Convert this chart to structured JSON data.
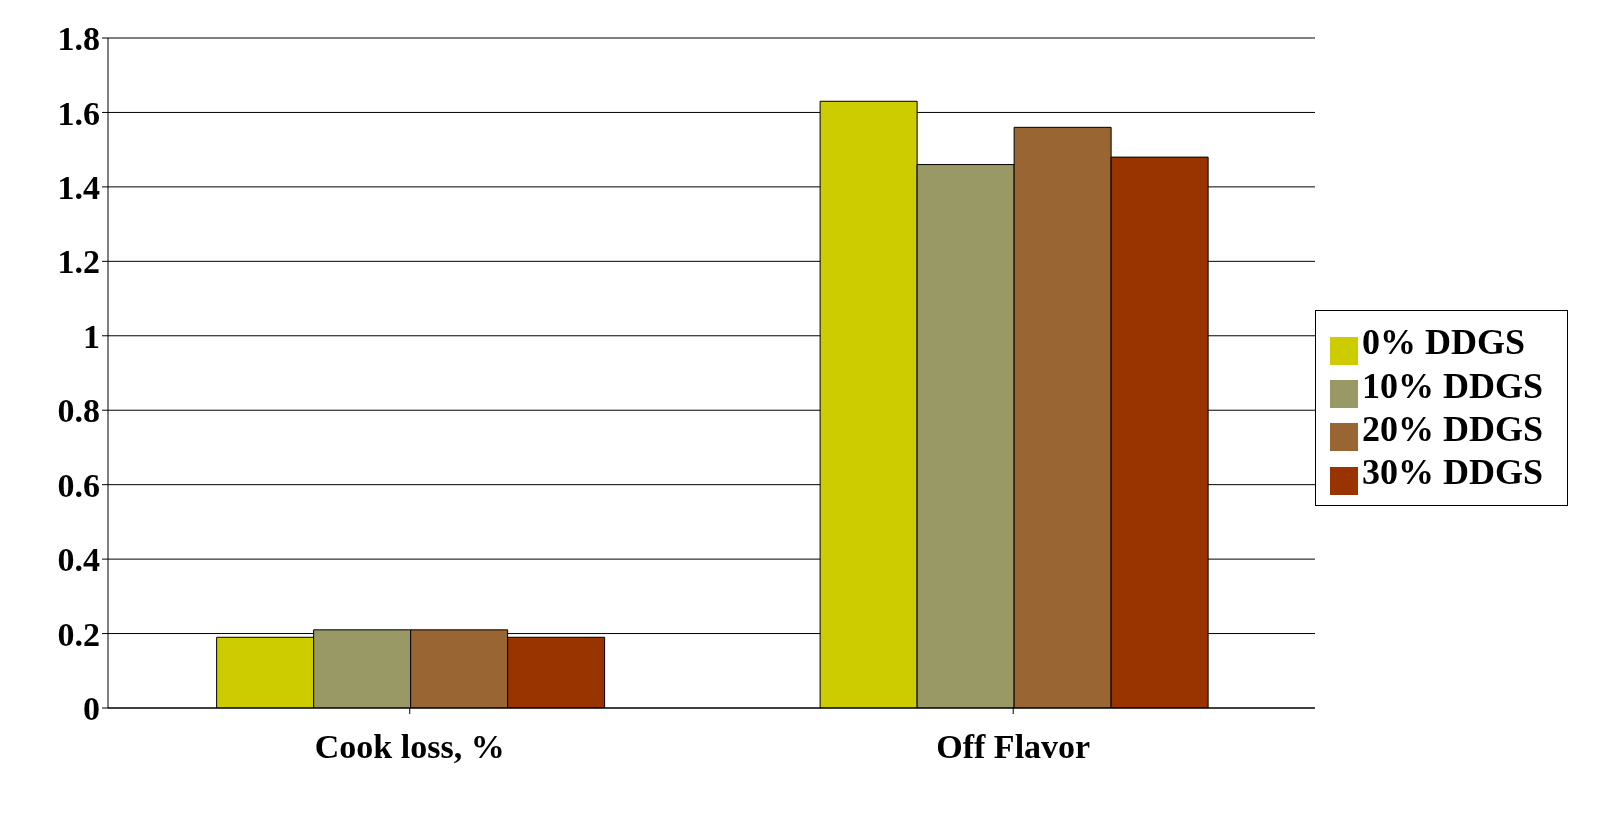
{
  "chart_data": {
    "type": "bar",
    "categories": [
      "Cook loss, %",
      "Off Flavor"
    ],
    "series": [
      {
        "name": "0% DDGS",
        "color": "#cccc00",
        "values": [
          0.19,
          1.63
        ]
      },
      {
        "name": "10% DDGS",
        "color": "#999966",
        "values": [
          0.21,
          1.46
        ]
      },
      {
        "name": "20% DDGS",
        "color": "#996633",
        "values": [
          0.21,
          1.56
        ]
      },
      {
        "name": "30% DDGS",
        "color": "#993300",
        "values": [
          0.19,
          1.48
        ]
      }
    ],
    "ylim": [
      0,
      1.8
    ],
    "yticks": [
      0,
      0.2,
      0.4,
      0.6,
      0.8,
      1,
      1.2,
      1.4,
      1.6,
      1.8
    ],
    "grid": "y",
    "legend": "right"
  }
}
